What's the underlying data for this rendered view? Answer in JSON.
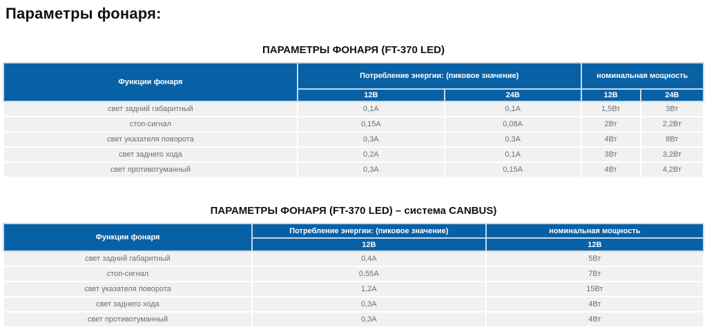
{
  "page": {
    "title": "Параметры фонаря:"
  },
  "colors": {
    "header_blue": "#0961a5",
    "header_border_light_blue": "#c9d9e8",
    "row_background_gray": "#f1f1f1",
    "row_text_gray": "#6e6e6e"
  },
  "table1": {
    "title": "ПАРАМЕТРЫ ФОНАРЯ (FT-370 LED)",
    "headers": {
      "functions": "Функции фонаря",
      "consumption_group": "Потребление энергии: (пиковое значение)",
      "nominal_group": "номинальная мощность",
      "consumption_12v": "12В",
      "consumption_24v": "24В",
      "nominal_12v": "12В",
      "nominal_24v": "24В"
    },
    "rows": [
      {
        "function": "свет задний габаритный",
        "cons_12v": "0,1А",
        "cons_24v": "0,1А",
        "pow_12v": "1,5Вт",
        "pow_24v": "3Вт"
      },
      {
        "function": "стоп-сигнал",
        "cons_12v": "0,15А",
        "cons_24v": "0,08А",
        "pow_12v": "2Вт",
        "pow_24v": "2,2Вт"
      },
      {
        "function": "свет указателя поворота",
        "cons_12v": "0,3А",
        "cons_24v": "0,3А",
        "pow_12v": "4Вт",
        "pow_24v": "8Вт"
      },
      {
        "function": "свет заднего хода",
        "cons_12v": "0,2А",
        "cons_24v": "0,1А",
        "pow_12v": "3Вт",
        "pow_24v": "3,2Вт"
      },
      {
        "function": "свет противотуманный",
        "cons_12v": "0,3А",
        "cons_24v": "0,15А",
        "pow_12v": "4Вт",
        "pow_24v": "4,2Вт"
      }
    ]
  },
  "table2": {
    "title": "ПАРАМЕТРЫ ФОНАРЯ (FT-370 LED) – система CANBUS)",
    "headers": {
      "functions": "Функции фонаря",
      "consumption_group": "Потребление энергии: (пиковое значение)",
      "nominal_group": "номинальная мощность",
      "consumption_12v": "12В",
      "nominal_12v": "12В"
    },
    "rows": [
      {
        "function": "свет задний габаритный",
        "cons_12v": "0,4А",
        "pow_12v": "5Вт"
      },
      {
        "function": "стоп-сигнал",
        "cons_12v": "0,55А",
        "pow_12v": "7Вт"
      },
      {
        "function": "свет указателя поворота",
        "cons_12v": "1,2А",
        "pow_12v": "15Вт"
      },
      {
        "function": "свет заднего хода",
        "cons_12v": "0,3А",
        "pow_12v": "4Вт"
      },
      {
        "function": "свет противотуманный",
        "cons_12v": "0,3А",
        "pow_12v": "4Вт"
      }
    ]
  }
}
